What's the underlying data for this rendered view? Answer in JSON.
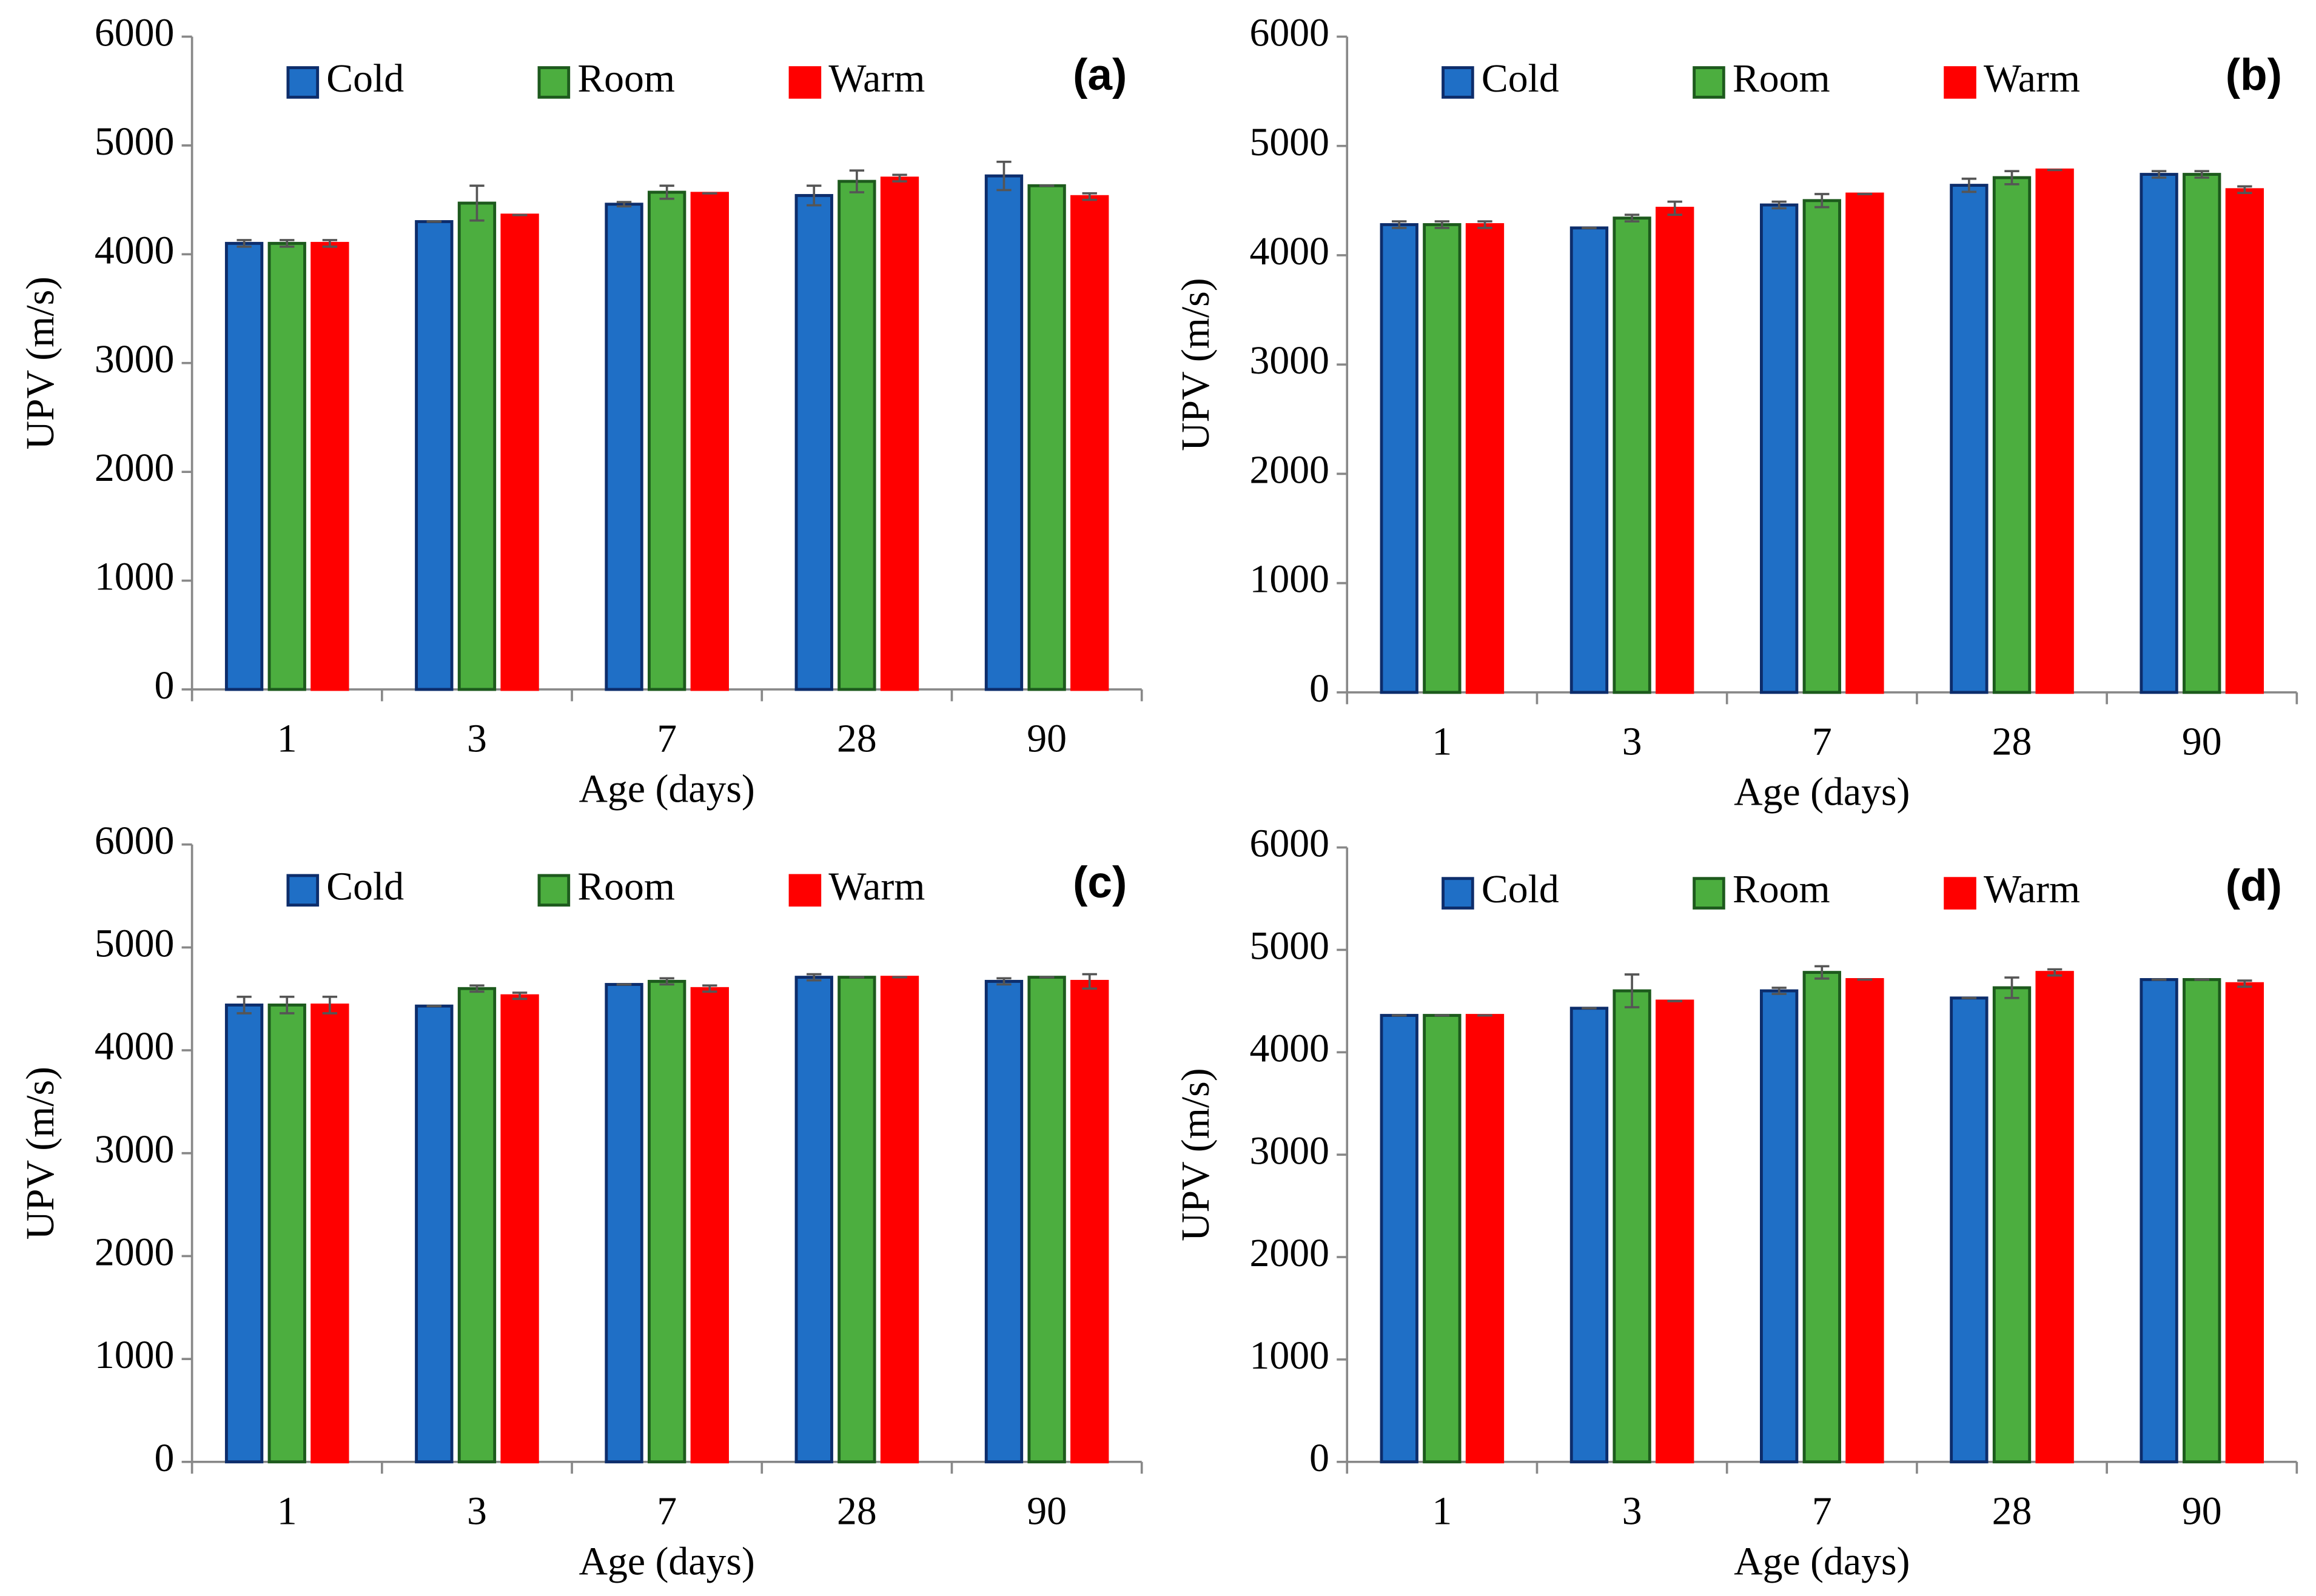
{
  "chart_data": [
    {
      "type": "bar",
      "annotation": "(a)",
      "x_label": "Age (days)",
      "y_label": "UPV (m/s)",
      "categories": [
        "1",
        "3",
        "7",
        "28",
        "90"
      ],
      "series": [
        {
          "name": "Cold",
          "color": "#1f6fc6",
          "values": [
            4100,
            4300,
            4460,
            4540,
            4720
          ],
          "errors": [
            30,
            0,
            20,
            90,
            130
          ]
        },
        {
          "name": "Room",
          "color": "#4cae3f",
          "values": [
            4100,
            4470,
            4570,
            4670,
            4630
          ],
          "errors": [
            30,
            160,
            60,
            100,
            0
          ]
        },
        {
          "name": "Warm",
          "color": "#ff0000",
          "values": [
            4100,
            4360,
            4560,
            4700,
            4530
          ],
          "errors": [
            30,
            0,
            0,
            30,
            30
          ]
        }
      ],
      "ylim": [
        0,
        6000
      ],
      "yticks": [
        0,
        1000,
        2000,
        3000,
        4000,
        5000,
        6000
      ]
    },
    {
      "type": "bar",
      "annotation": "(b)",
      "x_label": "Age (days)",
      "y_label": "UPV (m/s)",
      "categories": [
        "1",
        "3",
        "7",
        "28",
        "90"
      ],
      "series": [
        {
          "name": "Cold",
          "color": "#1f6fc6",
          "values": [
            4280,
            4250,
            4460,
            4640,
            4740
          ],
          "errors": [
            30,
            0,
            30,
            60,
            30
          ]
        },
        {
          "name": "Room",
          "color": "#4cae3f",
          "values": [
            4280,
            4340,
            4500,
            4710,
            4740
          ],
          "errors": [
            30,
            30,
            60,
            60,
            30
          ]
        },
        {
          "name": "Warm",
          "color": "#ff0000",
          "values": [
            4280,
            4430,
            4560,
            4780,
            4600
          ],
          "errors": [
            30,
            60,
            0,
            0,
            30
          ]
        }
      ],
      "ylim": [
        0,
        6000
      ],
      "yticks": [
        0,
        1000,
        2000,
        3000,
        4000,
        5000,
        6000
      ]
    },
    {
      "type": "bar",
      "annotation": "(c)",
      "x_label": "Age (days)",
      "y_label": "UPV (m/s)",
      "categories": [
        "1",
        "3",
        "7",
        "28",
        "90"
      ],
      "series": [
        {
          "name": "Cold",
          "color": "#1f6fc6",
          "values": [
            4440,
            4430,
            4640,
            4710,
            4670
          ],
          "errors": [
            80,
            0,
            0,
            30,
            30
          ]
        },
        {
          "name": "Room",
          "color": "#4cae3f",
          "values": [
            4440,
            4600,
            4670,
            4710,
            4710
          ],
          "errors": [
            80,
            30,
            30,
            0,
            0
          ]
        },
        {
          "name": "Warm",
          "color": "#ff0000",
          "values": [
            4440,
            4530,
            4600,
            4710,
            4670
          ],
          "errors": [
            80,
            30,
            30,
            0,
            70
          ]
        }
      ],
      "ylim": [
        0,
        6000
      ],
      "yticks": [
        0,
        1000,
        2000,
        3000,
        4000,
        5000,
        6000
      ]
    },
    {
      "type": "bar",
      "annotation": "(d)",
      "x_label": "Age (days)",
      "y_label": "UPV (m/s)",
      "categories": [
        "1",
        "3",
        "7",
        "28",
        "90"
      ],
      "series": [
        {
          "name": "Cold",
          "color": "#1f6fc6",
          "values": [
            4360,
            4430,
            4600,
            4530,
            4710
          ],
          "errors": [
            0,
            0,
            30,
            0,
            0
          ]
        },
        {
          "name": "Room",
          "color": "#4cae3f",
          "values": [
            4360,
            4600,
            4780,
            4630,
            4710
          ],
          "errors": [
            0,
            160,
            60,
            100,
            0
          ]
        },
        {
          "name": "Warm",
          "color": "#ff0000",
          "values": [
            4360,
            4500,
            4710,
            4780,
            4670
          ],
          "errors": [
            0,
            0,
            0,
            30,
            30
          ]
        }
      ],
      "ylim": [
        0,
        6000
      ],
      "yticks": [
        0,
        1000,
        2000,
        3000,
        4000,
        5000,
        6000
      ]
    }
  ]
}
